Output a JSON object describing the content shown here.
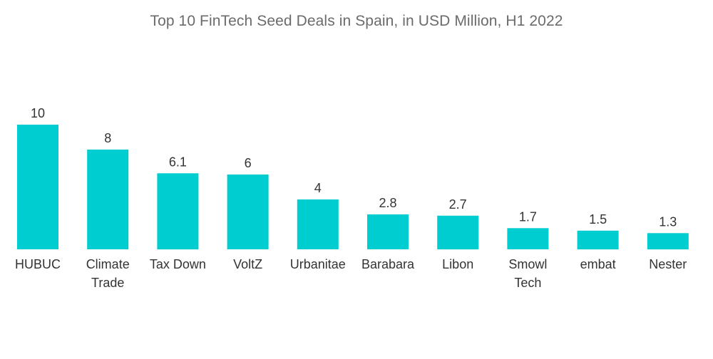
{
  "chart_data": {
    "type": "bar",
    "title": "Top 10 FinTech Seed Deals in Spain, in USD Million, H1 2022",
    "xlabel": "",
    "ylabel": "",
    "ylim": [
      0,
      10
    ],
    "grid": false,
    "legend": "none",
    "categories": [
      [
        "HUBUC"
      ],
      [
        "Climate",
        "Trade"
      ],
      [
        "Tax Down"
      ],
      [
        "VoltZ"
      ],
      [
        "Urbanitae"
      ],
      [
        "Barabara"
      ],
      [
        "Libon"
      ],
      [
        "Smowl",
        "Tech"
      ],
      [
        "embat"
      ],
      [
        "Nester"
      ]
    ],
    "values": [
      10,
      8,
      6.1,
      6,
      4,
      2.8,
      2.7,
      1.7,
      1.5,
      1.3
    ],
    "value_labels": [
      "10",
      "8",
      "6.1",
      "6",
      "4",
      "2.8",
      "2.7",
      "1.7",
      "1.5",
      "1.3"
    ],
    "bar_color": "#00cdd0"
  }
}
